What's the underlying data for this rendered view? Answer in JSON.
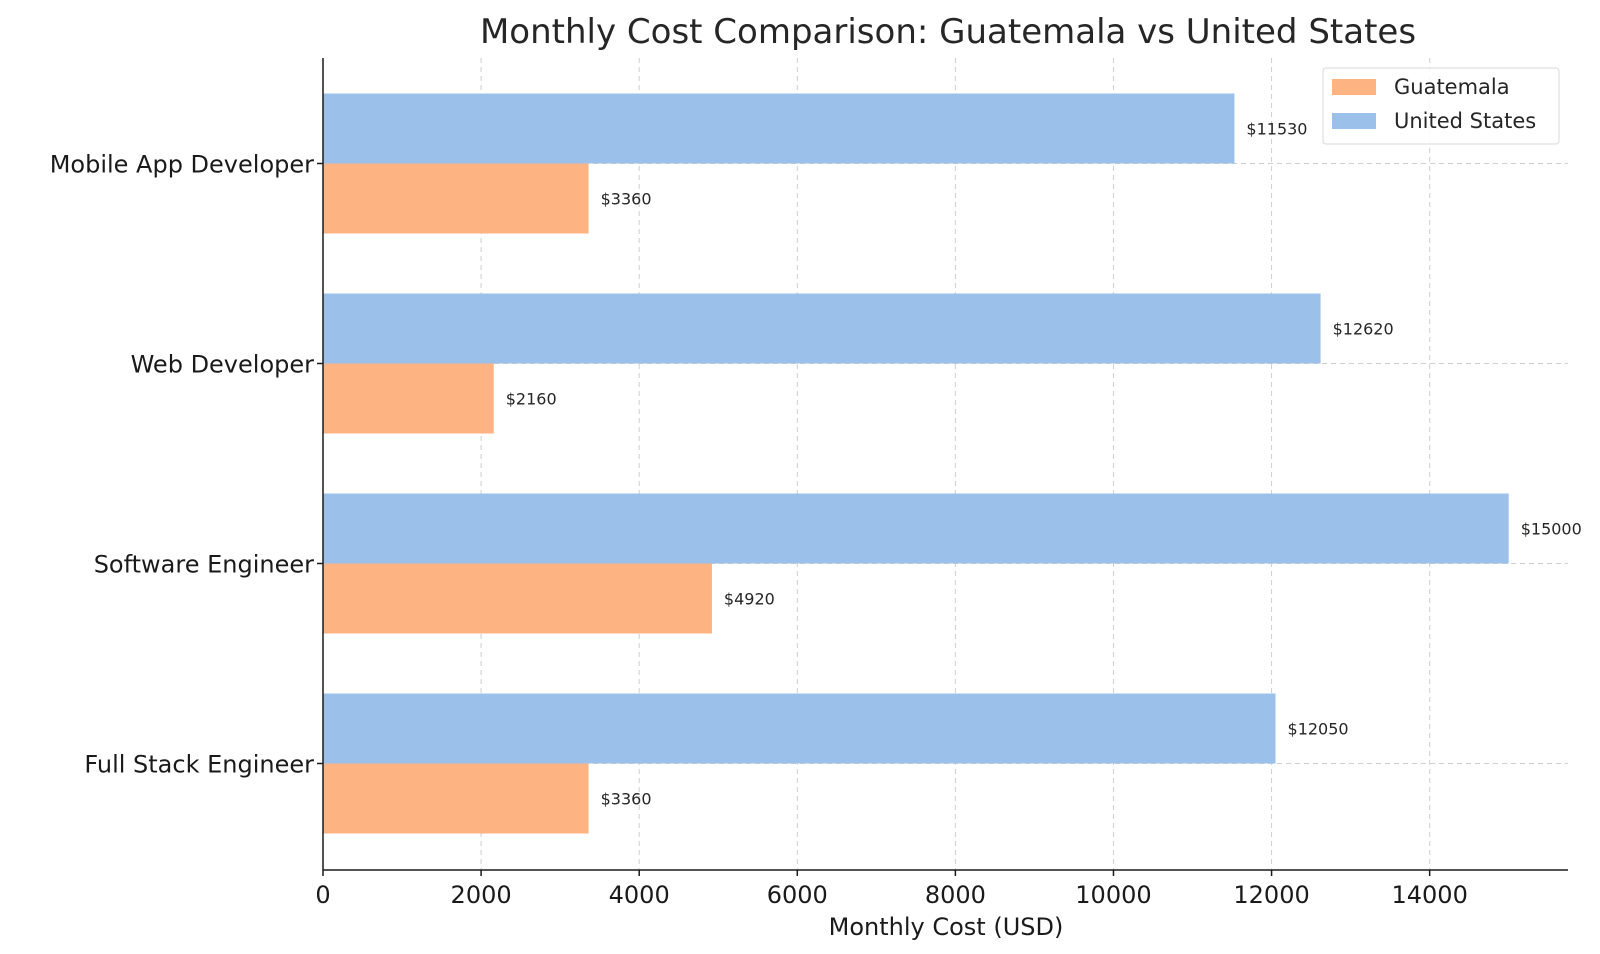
{
  "chart_data": {
    "type": "bar",
    "orientation": "horizontal",
    "title": "Monthly Cost Comparison: Guatemala vs United States",
    "xlabel": "Monthly Cost (USD)",
    "ylabel": "",
    "categories": [
      "Mobile App Developer",
      "Web Developer",
      "Software Engineer",
      "Full Stack Engineer"
    ],
    "series": [
      {
        "name": "Guatemala",
        "color": "#fdb382",
        "values": [
          3360,
          2160,
          4920,
          3360
        ],
        "labels": [
          "$3360",
          "$2160",
          "$4920",
          "$3360"
        ]
      },
      {
        "name": "United States",
        "color": "#9bc0ea",
        "values": [
          11530,
          12620,
          15000,
          12050
        ],
        "labels": [
          "$11530",
          "$12620",
          "$15000",
          "$12050"
        ]
      }
    ],
    "xlim": [
      0,
      15750
    ],
    "xticks": [
      0,
      2000,
      4000,
      6000,
      8000,
      10000,
      12000,
      14000
    ],
    "xtick_labels": [
      "0",
      "2000",
      "4000",
      "6000",
      "8000",
      "10000",
      "12000",
      "14000"
    ],
    "grid": true,
    "legend": "top-right"
  }
}
